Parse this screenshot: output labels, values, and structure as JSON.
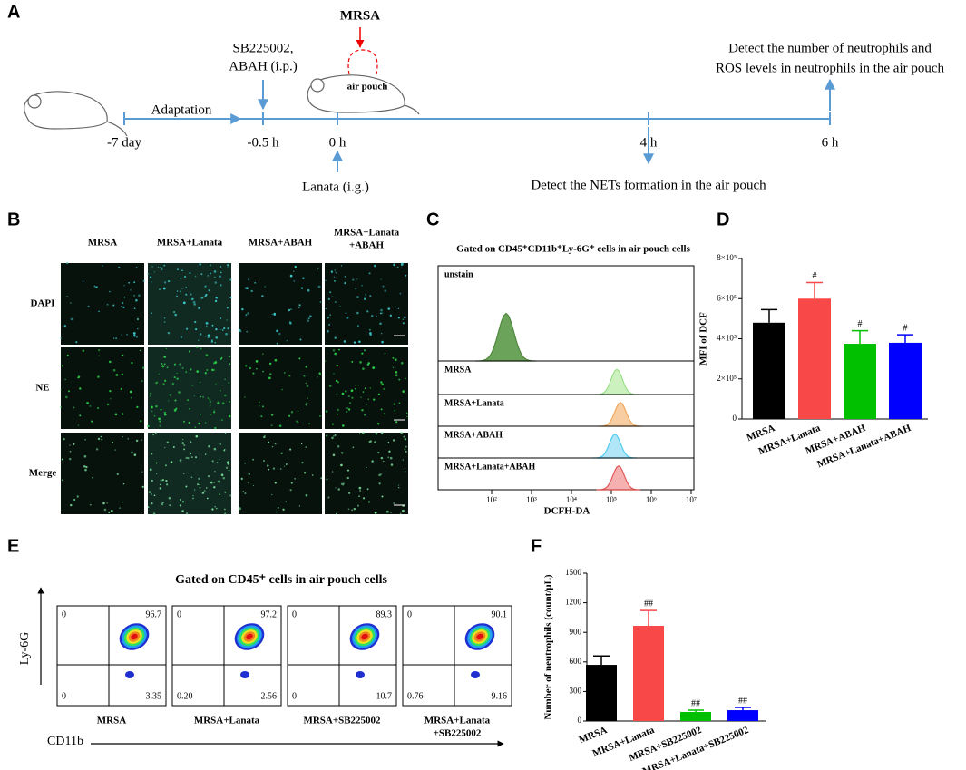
{
  "panels": {
    "a": "A",
    "b": "B",
    "c": "C",
    "d": "D",
    "e": "E",
    "f": "F"
  },
  "timeline": {
    "mrsa": "MRSA",
    "injection": [
      "SB225002,",
      "ABAH (i.p.)"
    ],
    "pouch": "air pouch",
    "detect_top": [
      "Detect the number of neutrophils and",
      "ROS levels in neutrophils in the air pouch"
    ],
    "adaptation": "Adaptation",
    "times": [
      "-7 day",
      "-0.5 h",
      "0 h",
      "4 h",
      "6 h"
    ],
    "gavage": "Lanata (i.g.)",
    "detect_bottom": "Detect the NETs formation in the air pouch"
  },
  "imaging": {
    "columns": [
      [
        "MRSA"
      ],
      [
        "MRSA+Lanata"
      ],
      [
        "MRSA+ABAH"
      ],
      [
        "MRSA+Lanata",
        "+ABAH"
      ]
    ],
    "rows": [
      "DAPI",
      "NE",
      "Merge"
    ]
  },
  "flow_histogram": {
    "title": "Gated on CD45⁺CD11b⁺Ly-6G⁺ cells in air pouch cells",
    "samples": [
      "unstain",
      "MRSA",
      "MRSA+Lanata",
      "MRSA+ABAH",
      "MRSA+Lanata+ABAH"
    ],
    "xlabel": "DCFH-DA",
    "xscale": "log",
    "xlim": [
      10,
      10000000
    ],
    "xticks": [
      {
        "value": 100,
        "label": "10²"
      },
      {
        "value": 1000,
        "label": "10³"
      },
      {
        "value": 10000,
        "label": "10⁴"
      },
      {
        "value": 100000,
        "label": "10⁵"
      },
      {
        "value": 1000000,
        "label": "10⁶"
      },
      {
        "value": 10000000,
        "label": "10⁷"
      }
    ]
  },
  "flow_plots": {
    "title": "Gated on CD45⁺ cells in air pouch cells",
    "ylabel": "Ly-6G",
    "xlabel": "CD11b",
    "plots": [
      {
        "label": [
          "MRSA"
        ],
        "quadrants": [
          "0",
          "96.7",
          "0",
          "3.35"
        ]
      },
      {
        "label": [
          "MRSA+Lanata"
        ],
        "quadrants": [
          "0",
          "97.2",
          "0.20",
          "2.56"
        ]
      },
      {
        "label": [
          "MRSA+SB225002"
        ],
        "quadrants": [
          "0",
          "89.3",
          "0",
          "10.7"
        ]
      },
      {
        "label": [
          "MRSA+Lanata",
          "+SB225002"
        ],
        "quadrants": [
          "0",
          "90.1",
          "0.76",
          "9.16"
        ]
      }
    ]
  },
  "chart_data": [
    {
      "type": "bar",
      "ylabel": "MFI of DCF",
      "categories": [
        "MRSA",
        "MRSA+Lanata",
        "MRSA+ABAH",
        "MRSA+Lanata+ABAH"
      ],
      "values": [
        480000,
        600000,
        375000,
        380000
      ],
      "errors": [
        65000,
        80000,
        65000,
        40000
      ],
      "colors": [
        "#000000",
        "#f84848",
        "#00c000",
        "#0000ff"
      ],
      "annotations": [
        null,
        "#",
        "#",
        "#"
      ],
      "ylim": [
        0,
        800000
      ],
      "yticks": [
        0,
        {
          "value": 200000,
          "label": "2×10⁵"
        },
        {
          "value": 400000,
          "label": "4×10⁵"
        },
        {
          "value": 600000,
          "label": "6×10⁵"
        },
        {
          "value": 800000,
          "label": "8×10⁵"
        }
      ]
    },
    {
      "type": "bar",
      "ylabel": "Number of neutrophils (count/μL)",
      "categories": [
        "MRSA",
        "MRSA+Lanata",
        "MRSA+SB225002",
        "MRSA+Lanata+SB225002"
      ],
      "values": [
        570,
        966,
        92,
        110
      ],
      "errors": [
        90,
        155,
        18,
        28
      ],
      "colors": [
        "#000000",
        "#f84848",
        "#00c000",
        "#0000ff"
      ],
      "annotations": [
        null,
        "##",
        "##",
        "##"
      ],
      "ylim": [
        0,
        1500
      ],
      "yticks": [
        0,
        300,
        600,
        900,
        1200,
        1500
      ]
    }
  ]
}
